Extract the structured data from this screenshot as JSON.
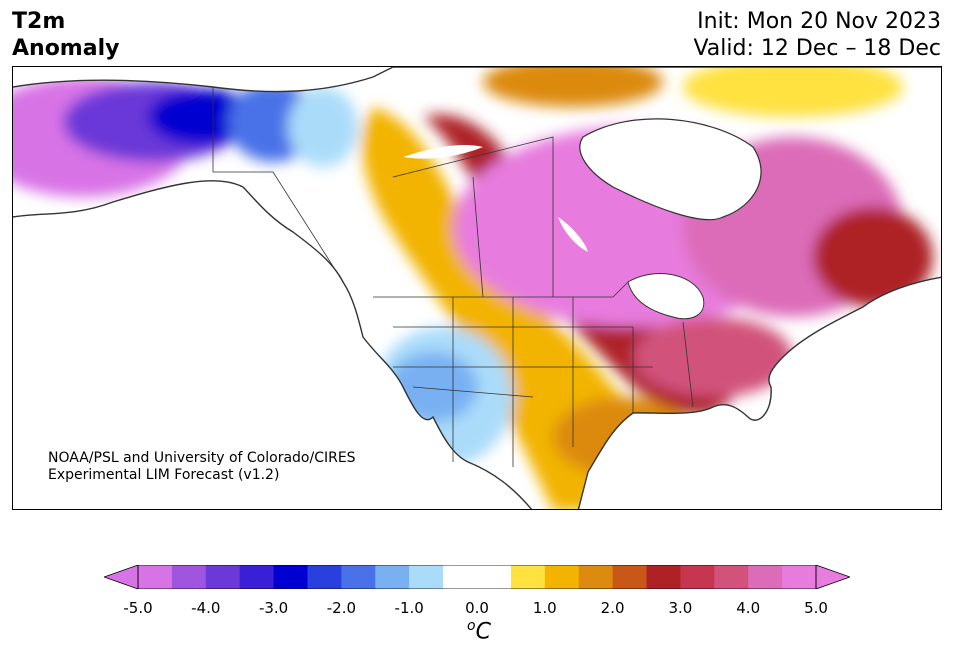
{
  "title": {
    "line1": "T2m",
    "line2": "Anomaly"
  },
  "dates": {
    "init": "Init: Mon 20 Nov 2023",
    "valid": "Valid: 12 Dec – 18 Dec"
  },
  "credit": {
    "line1": "NOAA/PSL and University of Colorado/CIRES",
    "line2": "Experimental LIM Forecast (v1.2)"
  },
  "colorbar": {
    "unit_super": "o",
    "unit": "C",
    "ticks": [
      "-5.0",
      "-4.0",
      "-3.0",
      "-2.0",
      "-1.0",
      "0.0",
      "1.0",
      "2.0",
      "3.0",
      "4.0",
      "5.0"
    ],
    "colors": [
      "#d873e6",
      "#9f55dd",
      "#6a39d8",
      "#3a1fd6",
      "#0000d0",
      "#2a40de",
      "#4a72e8",
      "#78b0f2",
      "#aadcfa",
      "#ffffff",
      "#ffffff",
      "#ffe140",
      "#f2b400",
      "#dc8a10",
      "#c85818",
      "#ae2225",
      "#c6374f",
      "#d1527b",
      "#dc6cb8",
      "#e77bde"
    ],
    "min_color": "#d873e6",
    "max_color": "#e77bde"
  },
  "legend_colors": {
    "ocean": "#ffffff",
    "border": "#333333"
  }
}
